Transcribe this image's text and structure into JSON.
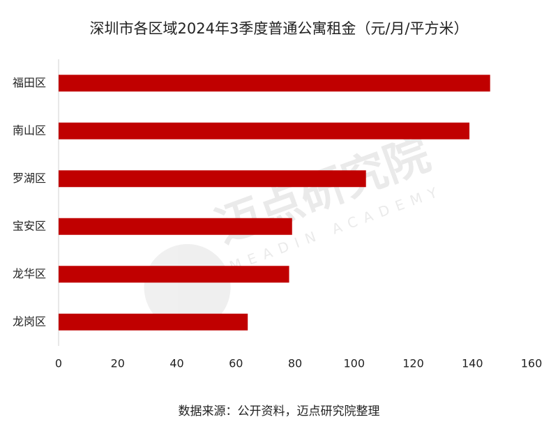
{
  "chart_data": {
    "type": "bar",
    "orientation": "horizontal",
    "title": "深圳市各区域2024年3季度普通公寓租金（元/月/平方米）",
    "categories": [
      "福田区",
      "南山区",
      "罗湖区",
      "宝安区",
      "龙华区",
      "龙岗区"
    ],
    "values": [
      146,
      139,
      104,
      79,
      78,
      64
    ],
    "color": "#c00000",
    "xlim": [
      0,
      160
    ],
    "xticks": [
      0,
      20,
      40,
      60,
      80,
      100,
      120,
      140,
      160
    ],
    "grid": false,
    "source": "数据来源：公开资料，迈点研究院整理",
    "watermark": {
      "name": "迈点研究院",
      "english": "MEADIN ACADEMY"
    }
  }
}
